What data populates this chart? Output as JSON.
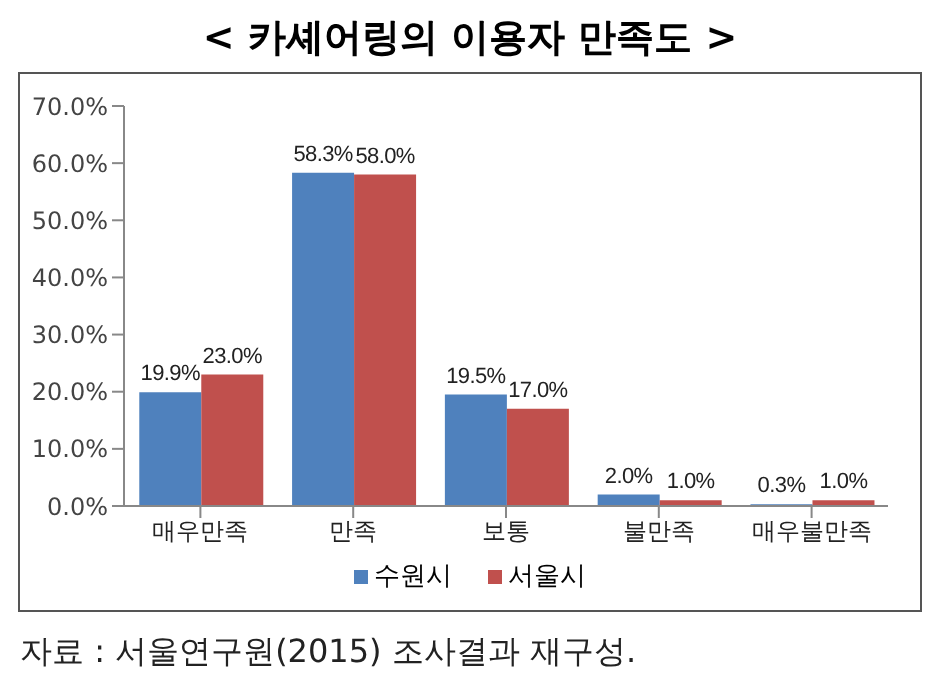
{
  "chart_data": {
    "type": "bar",
    "title": "< 카셰어링의 이용자 만족도 >",
    "categories": [
      "매우만족",
      "만족",
      "보통",
      "불만족",
      "매우불만족"
    ],
    "series": [
      {
        "name": "수원시",
        "color": "#4f81bd",
        "values": [
          19.9,
          58.3,
          19.5,
          2.0,
          0.3
        ],
        "value_labels": [
          "19.9%",
          "58.3%",
          "19.5%",
          "2.0%",
          "0.3%"
        ]
      },
      {
        "name": "서울시",
        "color": "#c0504d",
        "values": [
          23.0,
          58.0,
          17.0,
          1.0,
          1.0
        ],
        "value_labels": [
          "23.0%",
          "58.0%",
          "17.0%",
          "1.0%",
          "1.0%"
        ]
      }
    ],
    "ylim": [
      0,
      70
    ],
    "yticks": [
      {
        "value": 0,
        "label": "0.0%"
      },
      {
        "value": 10,
        "label": "10.0%"
      },
      {
        "value": 20,
        "label": "20.0%"
      },
      {
        "value": 30,
        "label": "30.0%"
      },
      {
        "value": 40,
        "label": "40.0%"
      },
      {
        "value": 50,
        "label": "50.0%"
      },
      {
        "value": 60,
        "label": "60.0%"
      },
      {
        "value": 70,
        "label": "70.0%"
      }
    ],
    "grid": false,
    "legend": "bottom",
    "annotations": [
      "자료 : 서울연구원(2015) 조사결과 재구성."
    ]
  }
}
